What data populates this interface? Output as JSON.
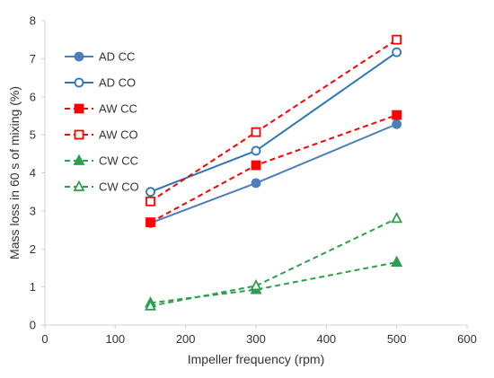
{
  "chart_data": {
    "type": "line",
    "title": "",
    "xlabel": "Impeller frequency (rpm)",
    "ylabel": "Mass loss in 60 s of mixing (%)",
    "xlim": [
      0,
      600
    ],
    "ylim": [
      0,
      8
    ],
    "xticks": [
      "0",
      "100",
      "200",
      "300",
      "400",
      "500",
      "600"
    ],
    "yticks": [
      "0",
      "1",
      "2",
      "3",
      "4",
      "5",
      "6",
      "7",
      "8"
    ],
    "grid": false,
    "legend_position": "top-left",
    "x": [
      150,
      300,
      500
    ],
    "series": [
      {
        "name": "AD CC",
        "values": [
          2.68,
          3.73,
          5.28
        ],
        "color": "#4a7ebb",
        "dash": "solid",
        "marker": "circle",
        "filled": true
      },
      {
        "name": "AD CO",
        "values": [
          3.5,
          4.58,
          7.17
        ],
        "color": "#2e75b6",
        "dash": "solid",
        "marker": "circle",
        "filled": false
      },
      {
        "name": "AW CC",
        "values": [
          2.7,
          4.2,
          5.52
        ],
        "color": "#ff0000",
        "dash": "dashed",
        "marker": "square",
        "filled": true
      },
      {
        "name": "AW CO",
        "values": [
          3.25,
          5.07,
          7.5
        ],
        "color": "#ff0000",
        "dash": "dashed",
        "marker": "square",
        "filled": false
      },
      {
        "name": "CW CC",
        "values": [
          0.58,
          0.93,
          1.65
        ],
        "color": "#2e9e4f",
        "dash": "dashed",
        "marker": "triangle",
        "filled": true
      },
      {
        "name": "CW CO",
        "values": [
          0.5,
          1.03,
          2.8
        ],
        "color": "#2e9e4f",
        "dash": "dashed",
        "marker": "triangle",
        "filled": false
      }
    ]
  }
}
